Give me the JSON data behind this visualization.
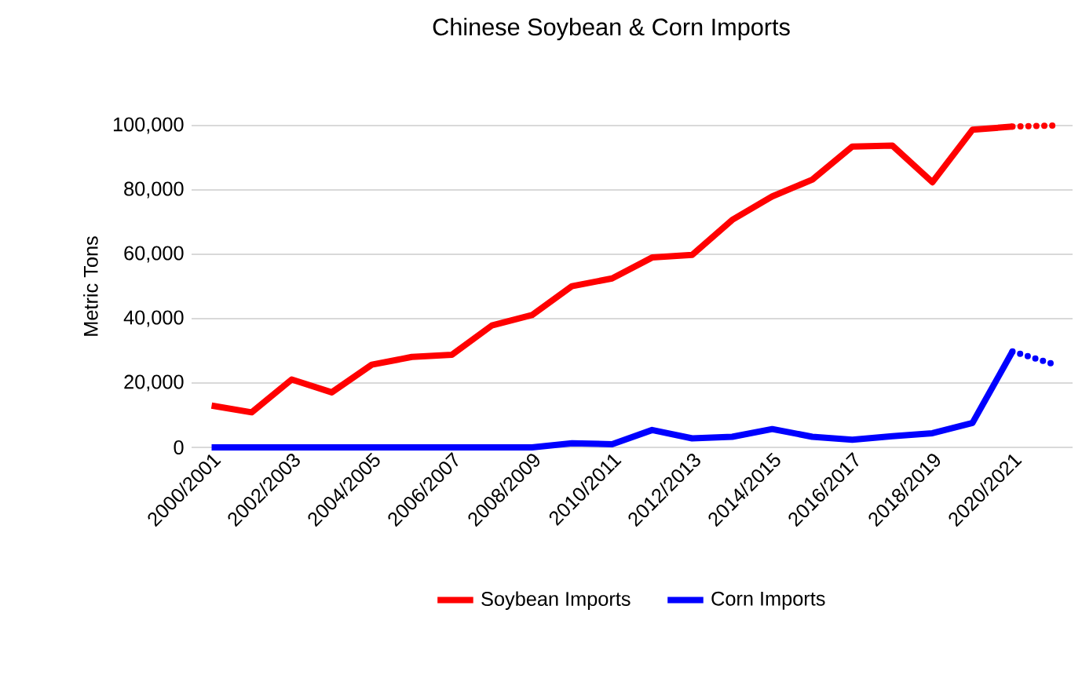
{
  "chart_data": {
    "type": "line",
    "title": "Chinese Soybean & Corn Imports",
    "ylabel": "Metric Tons",
    "categories": [
      "2000/2001",
      null,
      "2002/2003",
      null,
      "2004/2005",
      null,
      "2006/2007",
      null,
      "2008/2009",
      null,
      "2010/2011",
      null,
      "2012/2013",
      null,
      "2014/2015",
      null,
      "2016/2017",
      null,
      "2018/2019",
      null,
      "2020/2021",
      null
    ],
    "series": [
      {
        "name": "Soybean Imports",
        "color": "#ff0000",
        "line_style": "solid",
        "values": [
          13000,
          10900,
          21100,
          17100,
          25700,
          28100,
          28800,
          37900,
          41100,
          50100,
          52500,
          59000,
          59800,
          70700,
          78000,
          83200,
          93500,
          93800,
          82400,
          98700,
          99700,
          null
        ]
      },
      {
        "name": "Corn Imports",
        "color": "#0000ff",
        "line_style": "solid",
        "values": [
          0,
          0,
          0,
          0,
          0,
          0,
          0,
          0,
          0,
          1300,
          1000,
          5400,
          2800,
          3300,
          5700,
          3300,
          2400,
          3500,
          4400,
          7600,
          29800,
          null
        ]
      },
      {
        "color": "#ff0000",
        "line_style": "dotted",
        "values": [
          null,
          null,
          null,
          null,
          null,
          null,
          null,
          null,
          null,
          null,
          null,
          null,
          null,
          null,
          null,
          null,
          null,
          null,
          null,
          null,
          99700,
          100000
        ]
      },
      {
        "color": "#0000ff",
        "line_style": "dotted",
        "values": [
          null,
          null,
          null,
          null,
          null,
          null,
          null,
          null,
          null,
          null,
          null,
          null,
          null,
          null,
          null,
          null,
          null,
          null,
          null,
          null,
          29800,
          26000
        ]
      }
    ],
    "ylim": [
      0,
      100000
    ],
    "yticks": [
      0,
      {
        "value": 20000,
        "label": "20,000"
      },
      {
        "value": 40000,
        "label": "40,000"
      },
      {
        "value": 60000,
        "label": "60,000"
      },
      {
        "value": 80000,
        "label": "80,000"
      },
      {
        "value": 100000,
        "label": "100,000"
      }
    ],
    "grid": "y",
    "legend": "bottom",
    "marker": "none"
  }
}
